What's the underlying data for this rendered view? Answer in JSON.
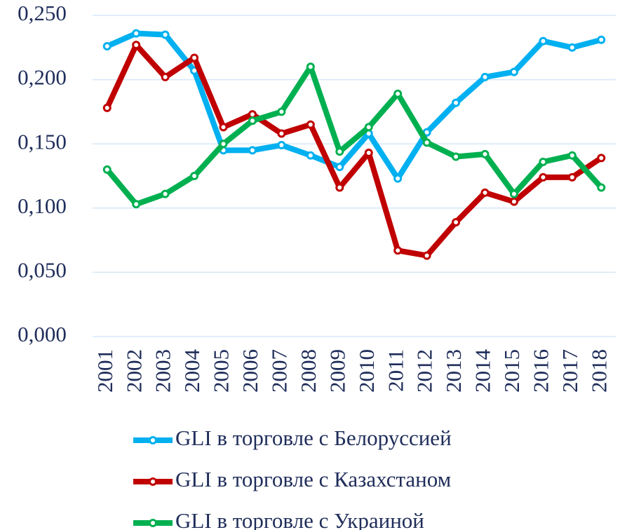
{
  "chart_data": {
    "type": "line",
    "categories": [
      "2001",
      "2002",
      "2003",
      "2004",
      "2005",
      "2006",
      "2007",
      "2008",
      "2009",
      "2010",
      "2011",
      "2012",
      "2013",
      "2014",
      "2015",
      "2016",
      "2017",
      "2018"
    ],
    "series": [
      {
        "name": "GLI в торговле с Белоруссией",
        "color": "#00b0f0",
        "values": [
          0.226,
          0.236,
          0.235,
          0.207,
          0.145,
          0.145,
          0.149,
          0.141,
          0.132,
          0.158,
          0.123,
          0.159,
          0.182,
          0.202,
          0.206,
          0.23,
          0.225,
          0.231
        ]
      },
      {
        "name": "GLI в торговле с Казахстаном",
        "color": "#c00000",
        "values": [
          0.178,
          0.227,
          0.202,
          0.217,
          0.163,
          0.173,
          0.158,
          0.165,
          0.116,
          0.143,
          0.067,
          0.063,
          0.089,
          0.112,
          0.105,
          0.124,
          0.124,
          0.139
        ]
      },
      {
        "name": "GLI в торговле с Украиной",
        "color": "#00b050",
        "values": [
          0.13,
          0.103,
          0.111,
          0.125,
          0.15,
          0.168,
          0.175,
          0.21,
          0.144,
          0.163,
          0.189,
          0.151,
          0.14,
          0.142,
          0.111,
          0.136,
          0.141,
          0.116
        ]
      }
    ],
    "ylim": [
      0,
      0.25
    ],
    "yticks": [
      {
        "value": 0,
        "label": "0,000"
      },
      {
        "value": 0.05,
        "label": "0,050"
      },
      {
        "value": 0.1,
        "label": "0,100"
      },
      {
        "value": 0.15,
        "label": "0,150"
      },
      {
        "value": 0.2,
        "label": "0,200"
      },
      {
        "value": 0.25,
        "label": "0,250"
      }
    ],
    "grid": true,
    "legend": "bottom"
  }
}
